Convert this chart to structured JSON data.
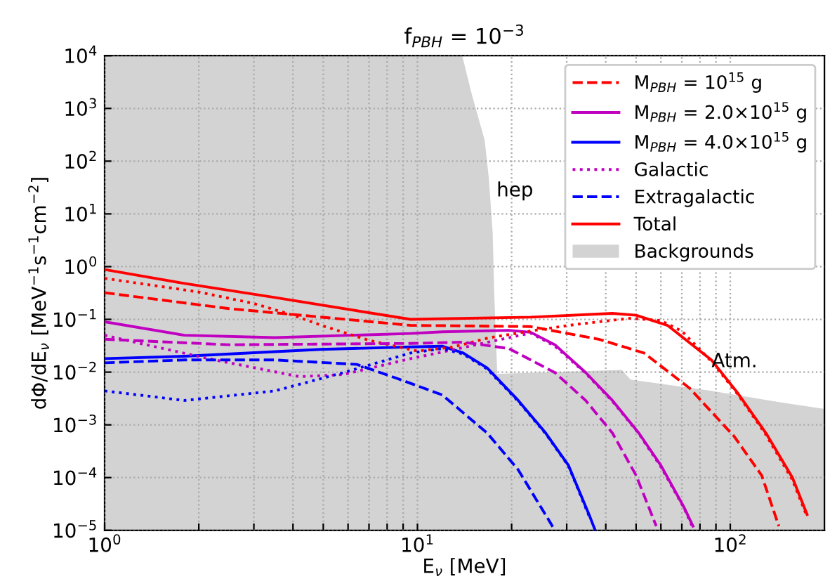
{
  "chart_data": {
    "type": "line",
    "title": "f$_{PBH}$ = 10$^{−3}$",
    "xlabel": "E$_{ν}$ [MeV]",
    "ylabel": "dΦ/dE$_{ν}$ [MeV$^{−1}$s$^{−1}$cm$^{−2}$]",
    "log": "xy",
    "xlim": [
      1,
      200
    ],
    "ylim": [
      1e-05,
      10000
    ],
    "xticks": [
      {
        "value": 1,
        "label": "10$^{0}$"
      },
      {
        "value": 2,
        "label": null
      },
      {
        "value": 3,
        "label": null
      },
      {
        "value": 4,
        "label": null
      },
      {
        "value": 5,
        "label": null
      },
      {
        "value": 6,
        "label": null
      },
      {
        "value": 7,
        "label": null
      },
      {
        "value": 8,
        "label": null
      },
      {
        "value": 9,
        "label": null
      },
      {
        "value": 10,
        "label": "10$^{1}$"
      },
      {
        "value": 20,
        "label": null
      },
      {
        "value": 30,
        "label": null
      },
      {
        "value": 40,
        "label": null
      },
      {
        "value": 50,
        "label": null
      },
      {
        "value": 60,
        "label": null
      },
      {
        "value": 70,
        "label": null
      },
      {
        "value": 80,
        "label": null
      },
      {
        "value": 90,
        "label": null
      },
      {
        "value": 100,
        "label": "10$^{2}$"
      }
    ],
    "yticks": [
      {
        "value": 1e-05,
        "label": "10$^{−5}$"
      },
      {
        "value": 0.0001,
        "label": "10$^{−4}$"
      },
      {
        "value": 0.001,
        "label": "10$^{−3}$"
      },
      {
        "value": 0.01,
        "label": "10$^{−2}$"
      },
      {
        "value": 0.1,
        "label": "10$^{−1}$"
      },
      {
        "value": 1,
        "label": "10$^{0}$"
      },
      {
        "value": 10,
        "label": "10$^{1}$"
      },
      {
        "value": 100,
        "label": "10$^{2}$"
      },
      {
        "value": 1000,
        "label": "10$^{3}$"
      },
      {
        "value": 10000,
        "label": "10$^{4}$"
      }
    ],
    "grid": true,
    "legend": "top right",
    "annotations": [
      "hep",
      "Atm."
    ],
    "series": [
      {
        "name": "M$_{PBH}$ = 10$^{15}$ g",
        "color": "#ff0000",
        "line_style": "dashed",
        "x": [
          1,
          2.5,
          9.5,
          23,
          38,
          53,
          74,
          103,
          126,
          143
        ],
        "values": [
          0.32,
          0.16,
          0.077,
          0.073,
          0.042,
          0.023,
          0.005,
          0.0006,
          0.00011,
          1.2e-05
        ]
      },
      {
        "name": "M$_{PBH}$ = 2.0×10$^{15}$ g",
        "color": "#c000c0",
        "line_style": "solid",
        "x": [
          1,
          1.8,
          3.5,
          9.5,
          12,
          19.6,
          23,
          27.5,
          34.5,
          42,
          51,
          60,
          71,
          76
        ],
        "values": [
          0.09,
          0.05,
          0.045,
          0.054,
          0.058,
          0.062,
          0.057,
          0.033,
          0.0098,
          0.0029,
          0.0007,
          0.00017,
          2.8e-05,
          1.2e-05
        ]
      },
      {
        "name": "M$_{PBH}$ = 4.0×10$^{15}$ g",
        "color": "#0000ff",
        "line_style": "solid",
        "x": [
          1,
          1.8,
          4.9,
          9.5,
          12,
          14,
          16.7,
          21,
          25.7,
          30.4,
          35.6,
          37
        ],
        "values": [
          0.018,
          0.02,
          0.027,
          0.03,
          0.031,
          0.023,
          0.012,
          0.0029,
          0.0007,
          0.00017,
          1.8e-05,
          1e-05
        ]
      },
      {
        "name": "Galactic",
        "color": "#c000c0",
        "line_style": "dotted",
        "x": [
          1,
          1.3,
          2.15,
          4.2,
          5.8,
          9.5,
          12,
          19.6,
          23,
          27.5,
          34.5,
          42,
          51,
          60,
          71,
          76
        ],
        "values": [
          0.05,
          0.035,
          0.018,
          0.0082,
          0.009,
          0.018,
          0.024,
          0.045,
          0.055,
          0.031,
          0.0095,
          0.0028,
          0.00068,
          0.00016,
          2.7e-05,
          1.1e-05
        ]
      },
      {
        "name": "Extragalactic",
        "color": "#0000ff",
        "line_style": "dashed",
        "x": [
          1,
          1.8,
          3.5,
          6.4,
          8.6,
          12,
          16.7,
          21,
          26.4,
          27.5
        ],
        "values": [
          0.015,
          0.017,
          0.017,
          0.014,
          0.0076,
          0.0037,
          0.0007,
          0.00014,
          1.5e-05,
          1e-05
        ]
      },
      {
        "name": "Total",
        "color": "#ff0000",
        "line_style": "solid",
        "x": [
          1,
          1.8,
          3.5,
          9.5,
          23,
          42,
          50,
          63,
          87,
          106,
          130,
          158,
          176
        ],
        "values": [
          0.88,
          0.48,
          0.26,
          0.1,
          0.11,
          0.13,
          0.12,
          0.077,
          0.017,
          0.0039,
          0.0007,
          0.0001,
          2e-05
        ]
      },
      {
        "name": "Backgrounds",
        "type": "area",
        "color": "#d3d3d3",
        "x": [
          1,
          13.9,
          14.9,
          16.4,
          16.9,
          17.4,
          17.6,
          18,
          18.1,
          45,
          48,
          87,
          143,
          200
        ],
        "values": [
          10000,
          10000,
          1900,
          250,
          50,
          4.3,
          0.3,
          0.009,
          0.0093,
          0.011,
          0.0072,
          0.0044,
          0.0027,
          0.002
        ]
      },
      {
        "color": "#ff0000",
        "line_style": "dotted",
        "x": [
          1,
          2,
          3,
          4,
          5,
          7,
          10,
          13,
          17,
          25,
          32,
          48,
          60,
          70,
          87,
          106,
          130,
          158,
          176
        ],
        "values": [
          0.6,
          0.33,
          0.2,
          0.12,
          0.075,
          0.04,
          0.025,
          0.03,
          0.045,
          0.065,
          0.08,
          0.105,
          0.095,
          0.06,
          0.016,
          0.0037,
          0.00065,
          9e-05,
          1.8e-05
        ]
      },
      {
        "color": "#c000c0",
        "line_style": "dashed",
        "x": [
          1,
          2.5,
          9.5,
          14,
          19.6,
          27.5,
          34.5,
          42,
          50,
          58
        ],
        "values": [
          0.042,
          0.033,
          0.035,
          0.037,
          0.028,
          0.0098,
          0.0029,
          0.0007,
          0.00011,
          1.2e-05
        ]
      },
      {
        "color": "#0000ff",
        "line_style": "dotted",
        "x": [
          1,
          1.8,
          3.5,
          5.8,
          9.5,
          12,
          14,
          16.7,
          21,
          25.7,
          30.4,
          35.6
        ],
        "values": [
          0.0044,
          0.0029,
          0.0044,
          0.0098,
          0.023,
          0.028,
          0.022,
          0.0115,
          0.0028,
          0.00068,
          0.000165,
          1.7e-05
        ]
      }
    ]
  }
}
